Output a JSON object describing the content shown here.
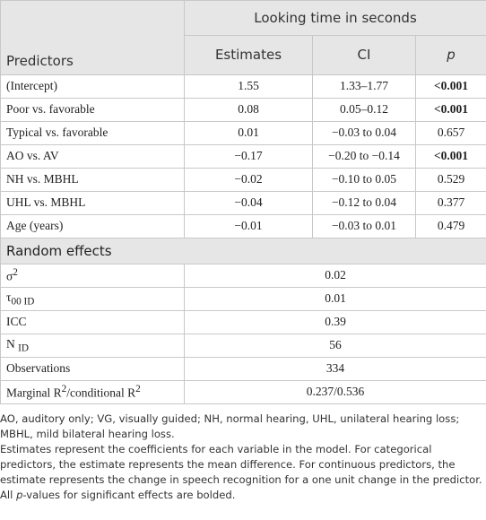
{
  "header": {
    "group": "Looking time in seconds",
    "columns": [
      "Predictors",
      "Estimates",
      "CI",
      "p"
    ]
  },
  "rows": [
    {
      "cells": [
        "(Intercept)",
        "1.55",
        "1.33–1.77",
        "<0.001"
      ],
      "bold_p": true
    },
    {
      "cells": [
        "Poor vs. favorable",
        "0.08",
        "0.05–0.12",
        "<0.001"
      ],
      "bold_p": true
    },
    {
      "cells": [
        "Typical vs. favorable",
        "0.01",
        "−0.03 to 0.04",
        "0.657"
      ],
      "bold_p": false
    },
    {
      "cells": [
        "AO vs. AV",
        "−0.17",
        "−0.20 to −0.14",
        "<0.001"
      ],
      "bold_p": true
    },
    {
      "cells": [
        "NH vs. MBHL",
        "−0.02",
        "−0.10 to 0.05",
        "0.529"
      ],
      "bold_p": false
    },
    {
      "cells": [
        "UHL vs. MBHL",
        "−0.04",
        "−0.12 to 0.04",
        "0.377"
      ],
      "bold_p": false
    },
    {
      "cells": [
        "Age (years)",
        "−0.01",
        "−0.03 to 0.01",
        "0.479"
      ],
      "bold_p": false
    }
  ],
  "random_effects": {
    "title": "Random effects",
    "rows": [
      {
        "label": [
          {
            "text": "σ"
          },
          {
            "sup": "2"
          }
        ],
        "value": "0.02"
      },
      {
        "label": [
          {
            "text": "τ"
          },
          {
            "sub": "00 ID"
          }
        ],
        "value": "0.01"
      },
      {
        "label": [
          {
            "text": "ICC"
          }
        ],
        "value": "0.39"
      },
      {
        "label": [
          {
            "text": "N "
          },
          {
            "sub": "ID"
          }
        ],
        "value": "56"
      },
      {
        "label": [
          {
            "text": "Observations"
          }
        ],
        "value": "334"
      },
      {
        "label": [
          {
            "text": "Marginal R"
          },
          {
            "sup": "2"
          },
          {
            "text": "/conditional R"
          },
          {
            "sup": "2"
          }
        ],
        "value": "0.237/0.536"
      }
    ]
  },
  "notes": [
    [
      {
        "text": "AO, auditory only; VG, visually guided; NH, normal hearing, UHL, unilateral hearing loss; MBHL, mild bilateral hearing loss."
      }
    ],
    [
      {
        "text": "Estimates represent the coefficients for each variable in the model. For categorical predictors, the estimate represents the mean difference. For continuous predictors, the estimate represents the change in speech recognition for a one unit change in the predictor."
      }
    ],
    [
      {
        "text": "All "
      },
      {
        "italic": "p"
      },
      {
        "text": "-values for significant effects are bolded."
      }
    ]
  ]
}
